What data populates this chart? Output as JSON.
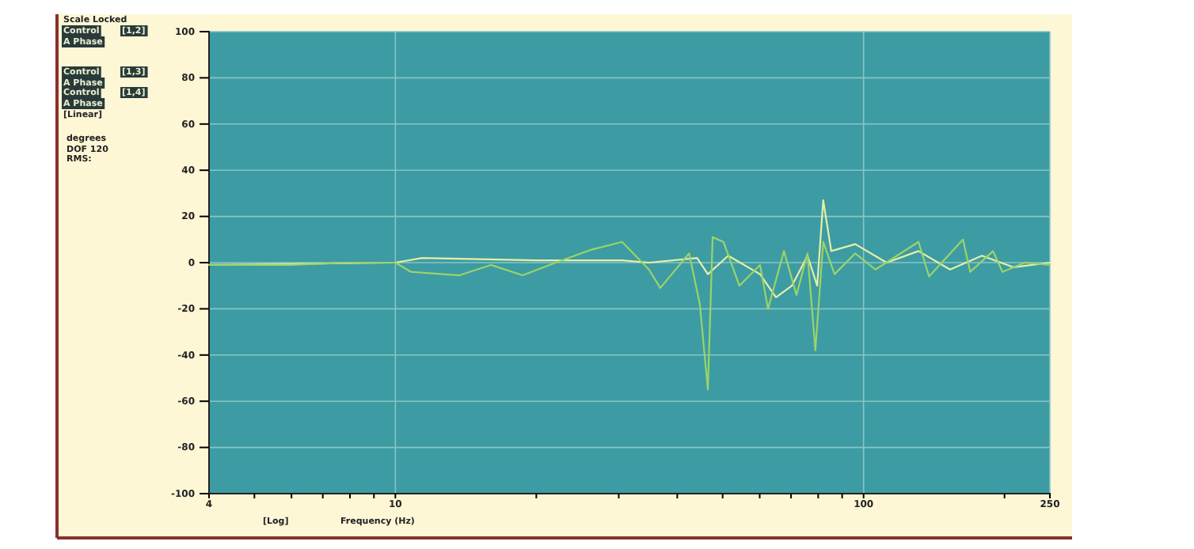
{
  "chart_data": {
    "type": "line",
    "xlabel": "Frequency (Hz)",
    "log": "x",
    "xlim": [
      4,
      250
    ],
    "xticks": [
      4,
      {
        "value": 5,
        "label": null
      },
      {
        "value": 6,
        "label": null
      },
      {
        "value": 7,
        "label": null
      },
      {
        "value": 8,
        "label": null
      },
      {
        "value": 9,
        "label": null
      },
      10,
      {
        "value": 20,
        "label": null
      },
      {
        "value": 30,
        "label": null
      },
      {
        "value": 40,
        "label": null
      },
      {
        "value": 50,
        "label": null
      },
      {
        "value": 60,
        "label": null
      },
      {
        "value": 70,
        "label": null
      },
      {
        "value": 80,
        "label": null
      },
      {
        "value": 90,
        "label": null
      },
      100,
      {
        "value": 200,
        "label": null
      },
      250
    ],
    "ylim": [
      -100,
      100
    ],
    "yticks": [
      -100,
      -80,
      -60,
      -40,
      -20,
      0,
      20,
      40,
      60,
      80,
      100
    ],
    "grid": true,
    "annotations": [
      "Scale Locked",
      "Control",
      "[1,2]",
      "A Phase",
      "Control",
      "[1,3]",
      "A Phase",
      "Control",
      "[1,4]",
      "A Phase",
      "[Linear]",
      "degrees",
      "DOF 120",
      "RMS:",
      "[Log]"
    ],
    "series": [
      {
        "color": "#e6efa8",
        "x": [
          4,
          10,
          11.4,
          20,
          30.5,
          34.8,
          44.1,
          46.5,
          51.4,
          60.1,
          65,
          70.3,
          75.9,
          79.6,
          82,
          85.3,
          96,
          112,
          131,
          153,
          179,
          209,
          250
        ],
        "values": [
          -1,
          0,
          2,
          1,
          1,
          0,
          2,
          -5,
          3,
          -5,
          -15,
          -10,
          3,
          -10,
          27,
          5,
          8,
          0,
          5,
          -3,
          3,
          -2,
          0
        ]
      },
      {
        "color": "#9ad36a",
        "x": [
          4,
          6,
          8,
          10,
          10.8,
          13.7,
          16,
          18.7,
          22,
          26.1,
          30.5,
          34.8,
          36.8,
          42.4,
          44.7,
          46.5,
          47.6,
          50.2,
          54.3,
          60.1,
          62.5,
          67.6,
          71.9,
          75.9,
          78.9,
          82,
          86.7,
          96,
          106,
          131,
          138,
          163,
          169,
          189,
          198,
          221,
          250
        ],
        "values": [
          -1,
          -1,
          0,
          0,
          -4,
          -5.5,
          -1,
          -5.5,
          0,
          5.5,
          9,
          -3,
          -11,
          4,
          -18,
          -55,
          11,
          9,
          -10,
          -1,
          -20,
          5,
          -14,
          4,
          -38,
          9,
          -5,
          4,
          -3,
          9,
          -6,
          10,
          -4,
          5,
          -4,
          0,
          -1
        ]
      }
    ]
  }
}
